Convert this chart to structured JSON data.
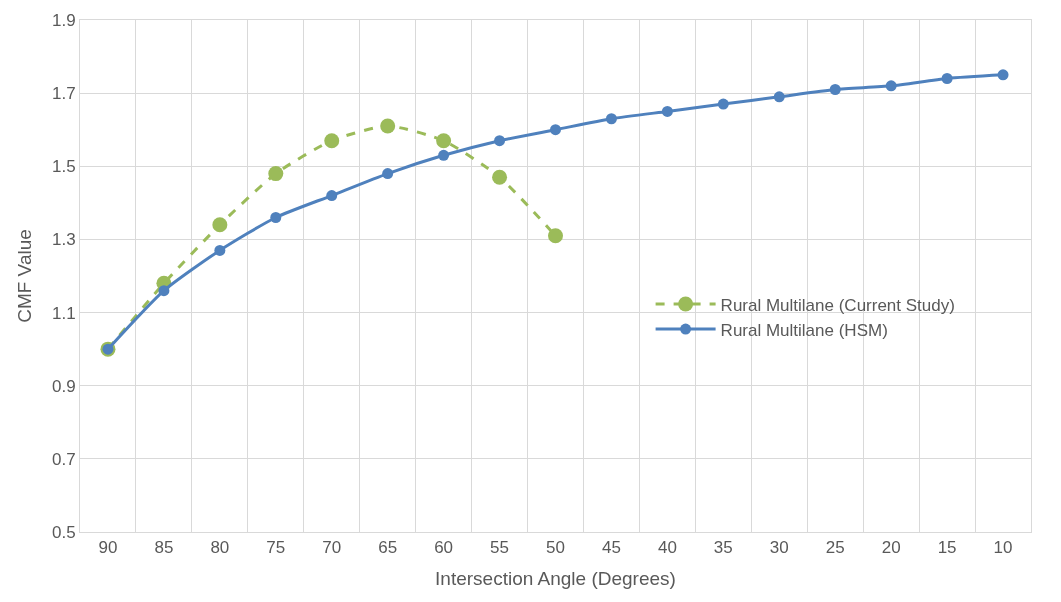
{
  "chart_data": {
    "type": "line",
    "xlabel": "Intersection Angle (Degrees)",
    "ylabel": "CMF Value",
    "categories": [
      "90",
      "85",
      "80",
      "75",
      "70",
      "65",
      "60",
      "55",
      "50",
      "45",
      "40",
      "35",
      "30",
      "25",
      "20",
      "15",
      "10"
    ],
    "series": [
      {
        "name": "Rural Multilane (Current Study)",
        "color": "#9bbb59",
        "line_style": "dashed",
        "values": [
          1.0,
          1.18,
          1.34,
          1.48,
          1.57,
          1.61,
          1.57,
          1.47,
          1.31,
          null,
          null,
          null,
          null,
          null,
          null,
          null,
          null
        ]
      },
      {
        "name": "Rural Multilane (HSM)",
        "color": "#4f81bd",
        "line_style": "solid",
        "values": [
          1.0,
          1.16,
          1.27,
          1.36,
          1.42,
          1.48,
          1.53,
          1.57,
          1.6,
          1.63,
          1.65,
          1.67,
          1.69,
          1.71,
          1.72,
          1.74,
          1.75
        ]
      }
    ],
    "ylim": [
      0.5,
      1.9
    ],
    "yticks": [
      0.5,
      0.7,
      0.9,
      1.1,
      1.3,
      1.5,
      1.7,
      1.9
    ],
    "grid": true,
    "legend": "right",
    "marker": "circle"
  }
}
